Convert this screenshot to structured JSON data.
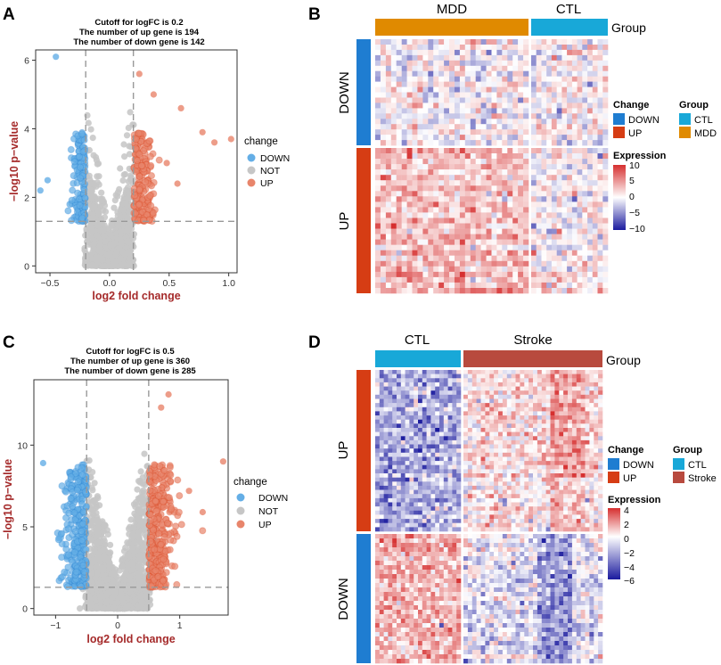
{
  "colors": {
    "down": "#1f7dd1",
    "down_light": "#64aee6",
    "not": "#c6c6c6",
    "up": "#d63d14",
    "up_light": "#e8856b",
    "axis_title": "#a52a2a",
    "mdd": "#e08a00",
    "ctl": "#18a8d8",
    "stroke": "#b84a3e",
    "heat_high": "#d62f2f",
    "heat_mid": "#ffffff",
    "heat_low": "#1a1a9e"
  },
  "panels": [
    {
      "id": "A",
      "letter": "A"
    },
    {
      "id": "B",
      "letter": "B"
    },
    {
      "id": "C",
      "letter": "C"
    },
    {
      "id": "D",
      "letter": "D"
    }
  ],
  "chart_data": [
    {
      "panel": "A",
      "type": "scatter",
      "subtype": "volcano",
      "title": [
        "Cutoff for logFC is 0.2",
        "The number of up gene is 194",
        "The number of down gene is 142"
      ],
      "xlabel": "log2 fold change",
      "ylabel": "−log10 p−value",
      "xlim": [
        -0.62,
        1.07
      ],
      "ylim": [
        -0.2,
        6.3
      ],
      "xticks": [
        -0.5,
        0.0,
        0.5,
        1.0
      ],
      "xtick_labels": [
        "−0.5",
        "0.0",
        "0.5",
        "1.0"
      ],
      "yticks": [
        0,
        2,
        4,
        6
      ],
      "ytick_labels": [
        "0",
        "2",
        "4",
        "6"
      ],
      "fc_cutoff": 0.2,
      "p_cutoff_y": 1.3,
      "legend_title": "change",
      "legend": [
        "DOWN",
        "NOT",
        "UP"
      ],
      "n_up": 194,
      "n_down": 142,
      "highlight_points": [
        {
          "x": 1.02,
          "y": 3.7,
          "group": "UP"
        },
        {
          "x": 0.88,
          "y": 3.6,
          "group": "UP"
        },
        {
          "x": 0.78,
          "y": 3.9,
          "group": "UP"
        },
        {
          "x": 0.6,
          "y": 4.6,
          "group": "UP"
        },
        {
          "x": 0.57,
          "y": 2.4,
          "group": "UP"
        },
        {
          "x": 0.48,
          "y": 3.0,
          "group": "UP"
        },
        {
          "x": 0.37,
          "y": 5.0,
          "group": "UP"
        },
        {
          "x": 0.25,
          "y": 5.6,
          "group": "UP"
        },
        {
          "x": -0.45,
          "y": 6.1,
          "group": "DOWN"
        },
        {
          "x": -0.52,
          "y": 2.5,
          "group": "DOWN"
        },
        {
          "x": -0.58,
          "y": 2.2,
          "group": "DOWN"
        }
      ]
    },
    {
      "panel": "B",
      "type": "heatmap",
      "column_groups": [
        {
          "label": "MDD",
          "key": "mdd",
          "n": 29
        },
        {
          "label": "CTL",
          "key": "ctl",
          "n": 15
        }
      ],
      "row_groups": [
        {
          "label": "DOWN",
          "key": "down",
          "n": 20
        },
        {
          "label": "UP",
          "key": "up",
          "n": 27
        }
      ],
      "group_label": "Group",
      "legend_change_title": "Change",
      "legend_change": [
        {
          "label": "DOWN",
          "key": "down"
        },
        {
          "label": "UP",
          "key": "up"
        }
      ],
      "legend_group_title": "Group",
      "legend_group": [
        {
          "label": "CTL",
          "key": "ctl"
        },
        {
          "label": "MDD",
          "key": "mdd"
        }
      ],
      "expression_title": "Expression",
      "expression_range": [
        -10,
        10
      ],
      "expression_ticks": [
        "10",
        "5",
        "0",
        "−5",
        "−10"
      ]
    },
    {
      "panel": "C",
      "type": "scatter",
      "subtype": "volcano",
      "title": [
        "Cutoff for logFC is 0.5",
        "The number of up gene is 360",
        "The number of down gene is 285"
      ],
      "xlabel": "log2 fold change",
      "ylabel": "−log10 p−value",
      "xlim": [
        -1.35,
        1.78
      ],
      "ylim": [
        -0.4,
        14.0
      ],
      "xticks": [
        -1,
        0,
        1
      ],
      "xtick_labels": [
        "−1",
        "0",
        "1"
      ],
      "yticks": [
        0,
        5,
        10
      ],
      "ytick_labels": [
        "0",
        "5",
        "10"
      ],
      "fc_cutoff": 0.5,
      "p_cutoff_y": 1.3,
      "legend_title": "change",
      "legend": [
        "DOWN",
        "NOT",
        "UP"
      ],
      "n_up": 360,
      "n_down": 285,
      "highlight_points": [
        {
          "x": 1.7,
          "y": 9.0,
          "group": "UP"
        },
        {
          "x": 1.37,
          "y": 5.9,
          "group": "UP"
        },
        {
          "x": 1.15,
          "y": 7.2,
          "group": "UP"
        },
        {
          "x": 0.7,
          "y": 12.3,
          "group": "UP"
        },
        {
          "x": 0.82,
          "y": 13.1,
          "group": "UP"
        },
        {
          "x": -1.2,
          "y": 8.9,
          "group": "DOWN"
        },
        {
          "x": -0.95,
          "y": 4.3,
          "group": "DOWN"
        }
      ]
    },
    {
      "panel": "D",
      "type": "heatmap",
      "column_groups": [
        {
          "label": "CTL",
          "key": "ctl",
          "n": 20
        },
        {
          "label": "Stroke",
          "key": "stroke",
          "n": 32
        }
      ],
      "row_groups": [
        {
          "label": "UP",
          "key": "up",
          "n": 39
        },
        {
          "label": "DOWN",
          "key": "down",
          "n": 29
        }
      ],
      "group_label": "Group",
      "legend_change_title": "Change",
      "legend_change": [
        {
          "label": "DOWN",
          "key": "down"
        },
        {
          "label": "UP",
          "key": "up"
        }
      ],
      "legend_group_title": "Group",
      "legend_group": [
        {
          "label": "CTL",
          "key": "ctl"
        },
        {
          "label": "Stroke",
          "key": "stroke"
        }
      ],
      "expression_title": "Expression",
      "expression_range": [
        -6,
        4
      ],
      "expression_ticks": [
        "4",
        "2",
        "0",
        "−2",
        "−4",
        "−6"
      ]
    }
  ]
}
